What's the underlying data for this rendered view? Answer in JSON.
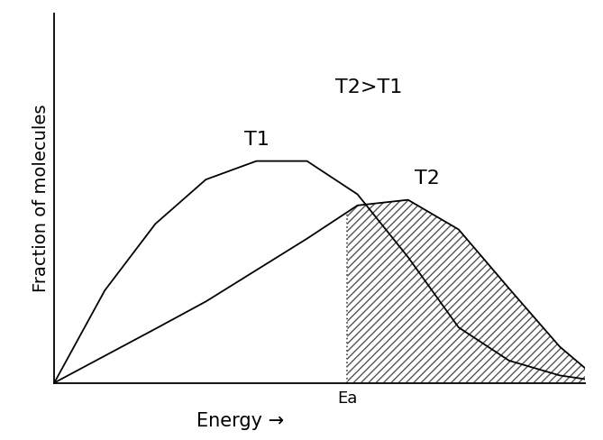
{
  "chart_data": {
    "type": "line",
    "x_label": "Energy →",
    "y_label": "Fraction of molecules",
    "annotations": [
      "T2>T1"
    ],
    "x": [
      0,
      1,
      2,
      3,
      4,
      5,
      6,
      7,
      8,
      9,
      10,
      10.5
    ],
    "series": [
      {
        "name": "T1",
        "color": "#000000",
        "values": [
          0,
          2.5,
          4.3,
          5.5,
          6.0,
          6.0,
          5.1,
          3.4,
          1.5,
          0.6,
          0.2,
          0.1
        ]
      },
      {
        "name": "T2",
        "color": "#000000",
        "values": [
          0,
          0.73,
          1.46,
          2.2,
          3.05,
          3.9,
          4.8,
          4.95,
          4.15,
          2.55,
          0.98,
          0.4
        ]
      }
    ],
    "threshold": {
      "label": "Ea",
      "value": 5.8
    },
    "xlim": [
      0,
      10.5
    ],
    "ylim": [
      0,
      10
    ],
    "tick_labels": false,
    "grid": false
  }
}
